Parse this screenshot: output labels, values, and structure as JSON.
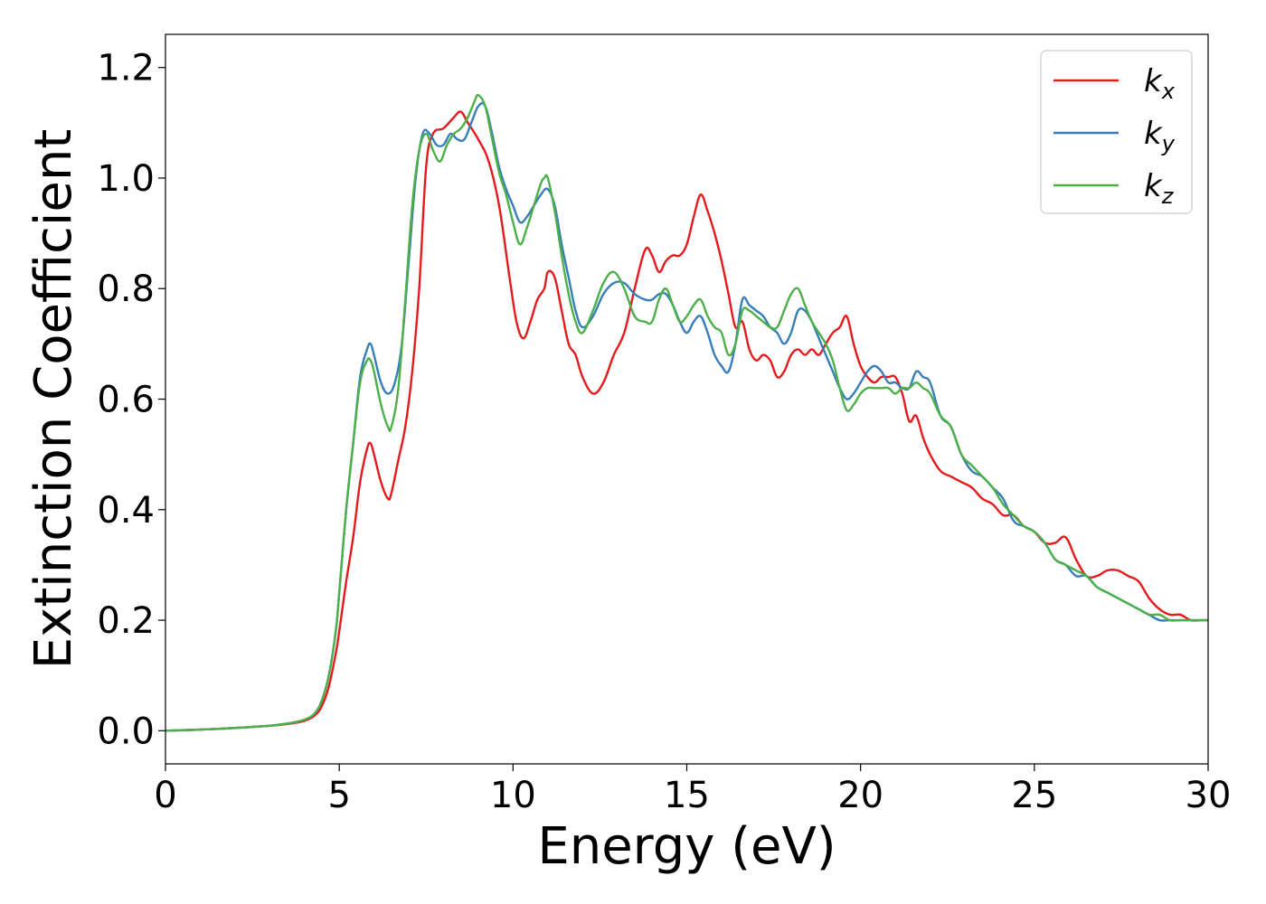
{
  "chart_data": {
    "type": "line",
    "xlabel": "Energy (eV)",
    "ylabel": "Extinction Coefficient",
    "xlim": [
      0,
      30
    ],
    "ylim": [
      -0.06,
      1.26
    ],
    "xticks": [
      0,
      5,
      10,
      15,
      20,
      25,
      30
    ],
    "xtick_labels": [
      "0",
      "5",
      "10",
      "15",
      "20",
      "25",
      "30"
    ],
    "yticks": [
      0.0,
      0.2,
      0.4,
      0.6,
      0.8,
      1.0,
      1.2
    ],
    "ytick_labels": [
      "0.0",
      "0.2",
      "0.4",
      "0.6",
      "0.8",
      "1.0",
      "1.2"
    ],
    "grid": false,
    "legend_position": "top-right",
    "series": [
      {
        "name": "k",
        "name_sub": "x",
        "color": "#e41a1c",
        "x": [
          0,
          1,
          2,
          3,
          3.5,
          4,
          4.3,
          4.5,
          4.7,
          4.9,
          5.0,
          5.2,
          5.4,
          5.6,
          5.8,
          5.9,
          6.0,
          6.2,
          6.4,
          6.5,
          6.7,
          6.9,
          7.1,
          7.3,
          7.5,
          7.7,
          8.0,
          8.3,
          8.5,
          8.7,
          9.0,
          9.3,
          9.6,
          9.9,
          10.1,
          10.3,
          10.5,
          10.7,
          10.9,
          11.0,
          11.2,
          11.4,
          11.6,
          11.8,
          12.0,
          12.3,
          12.6,
          12.9,
          13.2,
          13.5,
          13.8,
          14.0,
          14.2,
          14.4,
          14.6,
          14.8,
          15.0,
          15.2,
          15.4,
          15.6,
          15.8,
          16.0,
          16.2,
          16.4,
          16.6,
          16.8,
          17.0,
          17.2,
          17.4,
          17.6,
          17.8,
          18.0,
          18.2,
          18.4,
          18.6,
          18.8,
          19.0,
          19.2,
          19.4,
          19.6,
          19.8,
          20.0,
          20.2,
          20.4,
          20.6,
          20.8,
          21.0,
          21.2,
          21.4,
          21.6,
          21.8,
          22.0,
          22.3,
          22.6,
          22.9,
          23.2,
          23.5,
          23.8,
          24.1,
          24.4,
          24.7,
          25.0,
          25.3,
          25.6,
          25.9,
          26.2,
          26.5,
          26.8,
          27.1,
          27.4,
          27.7,
          28.0,
          28.3,
          28.6,
          28.9,
          29.2,
          29.5,
          29.8,
          30.0
        ],
        "y": [
          0.0,
          0.002,
          0.005,
          0.009,
          0.012,
          0.018,
          0.028,
          0.045,
          0.08,
          0.14,
          0.18,
          0.27,
          0.35,
          0.45,
          0.51,
          0.52,
          0.5,
          0.45,
          0.42,
          0.43,
          0.49,
          0.55,
          0.65,
          0.8,
          1.02,
          1.08,
          1.09,
          1.11,
          1.12,
          1.1,
          1.07,
          1.03,
          0.95,
          0.82,
          0.74,
          0.71,
          0.74,
          0.78,
          0.8,
          0.83,
          0.82,
          0.76,
          0.7,
          0.68,
          0.64,
          0.61,
          0.63,
          0.68,
          0.72,
          0.8,
          0.87,
          0.86,
          0.83,
          0.85,
          0.86,
          0.86,
          0.88,
          0.93,
          0.97,
          0.94,
          0.9,
          0.85,
          0.79,
          0.73,
          0.74,
          0.69,
          0.67,
          0.68,
          0.67,
          0.64,
          0.65,
          0.68,
          0.69,
          0.68,
          0.69,
          0.68,
          0.7,
          0.72,
          0.73,
          0.75,
          0.7,
          0.66,
          0.64,
          0.63,
          0.64,
          0.64,
          0.64,
          0.61,
          0.56,
          0.57,
          0.53,
          0.5,
          0.47,
          0.46,
          0.45,
          0.44,
          0.42,
          0.41,
          0.39,
          0.39,
          0.37,
          0.36,
          0.34,
          0.34,
          0.35,
          0.31,
          0.28,
          0.28,
          0.29,
          0.29,
          0.28,
          0.27,
          0.24,
          0.22,
          0.21,
          0.21,
          0.2,
          0.2,
          0.2
        ],
        "data_name": "series-kx"
      },
      {
        "name": "k",
        "name_sub": "y",
        "color": "#377eb8",
        "x": [
          0,
          1,
          2,
          3,
          3.5,
          4,
          4.3,
          4.5,
          4.7,
          4.9,
          5.0,
          5.2,
          5.4,
          5.6,
          5.8,
          5.9,
          6.0,
          6.2,
          6.4,
          6.6,
          6.8,
          7.0,
          7.2,
          7.4,
          7.6,
          7.8,
          8.0,
          8.2,
          8.4,
          8.6,
          8.8,
          9.0,
          9.2,
          9.4,
          9.6,
          9.8,
          10.0,
          10.2,
          10.4,
          10.6,
          10.8,
          11.0,
          11.2,
          11.4,
          11.6,
          11.8,
          12.0,
          12.3,
          12.6,
          12.9,
          13.2,
          13.5,
          13.8,
          14.0,
          14.2,
          14.4,
          14.6,
          14.8,
          15.0,
          15.2,
          15.4,
          15.6,
          15.8,
          16.0,
          16.2,
          16.4,
          16.6,
          16.8,
          17.0,
          17.2,
          17.4,
          17.6,
          17.8,
          18.0,
          18.2,
          18.4,
          18.6,
          18.8,
          19.0,
          19.2,
          19.4,
          19.6,
          19.8,
          20.0,
          20.2,
          20.4,
          20.6,
          20.8,
          21.0,
          21.2,
          21.4,
          21.6,
          21.8,
          22.0,
          22.3,
          22.6,
          22.9,
          23.2,
          23.5,
          23.8,
          24.1,
          24.4,
          24.7,
          25.0,
          25.3,
          25.6,
          25.9,
          26.2,
          26.5,
          26.8,
          27.1,
          27.4,
          27.7,
          28.0,
          28.3,
          28.6,
          28.9,
          29.2,
          29.5,
          29.8,
          30.0
        ],
        "y": [
          0.0,
          0.002,
          0.005,
          0.009,
          0.013,
          0.02,
          0.032,
          0.055,
          0.1,
          0.18,
          0.25,
          0.4,
          0.52,
          0.64,
          0.69,
          0.7,
          0.68,
          0.63,
          0.61,
          0.63,
          0.7,
          0.85,
          1.0,
          1.08,
          1.08,
          1.06,
          1.06,
          1.08,
          1.07,
          1.07,
          1.1,
          1.13,
          1.13,
          1.08,
          1.02,
          0.98,
          0.95,
          0.92,
          0.93,
          0.95,
          0.97,
          0.98,
          0.95,
          0.88,
          0.82,
          0.76,
          0.73,
          0.75,
          0.79,
          0.81,
          0.81,
          0.79,
          0.78,
          0.78,
          0.79,
          0.79,
          0.77,
          0.74,
          0.72,
          0.74,
          0.75,
          0.72,
          0.68,
          0.66,
          0.65,
          0.7,
          0.78,
          0.77,
          0.76,
          0.75,
          0.73,
          0.72,
          0.7,
          0.72,
          0.76,
          0.76,
          0.74,
          0.71,
          0.68,
          0.65,
          0.62,
          0.6,
          0.61,
          0.63,
          0.65,
          0.66,
          0.65,
          0.63,
          0.63,
          0.62,
          0.62,
          0.65,
          0.64,
          0.63,
          0.57,
          0.55,
          0.5,
          0.47,
          0.46,
          0.44,
          0.42,
          0.38,
          0.37,
          0.36,
          0.34,
          0.31,
          0.3,
          0.28,
          0.28,
          0.26,
          0.25,
          0.24,
          0.23,
          0.22,
          0.21,
          0.2,
          0.2,
          0.2,
          0.2,
          0.2,
          0.2
        ],
        "data_name": "series-ky"
      },
      {
        "name": "k",
        "name_sub": "z",
        "color": "#4daf4a",
        "x": [
          0,
          1,
          2,
          3,
          3.5,
          4,
          4.3,
          4.5,
          4.7,
          4.9,
          5.0,
          5.2,
          5.4,
          5.6,
          5.8,
          5.9,
          6.0,
          6.2,
          6.4,
          6.5,
          6.7,
          6.9,
          7.1,
          7.3,
          7.5,
          7.7,
          7.9,
          8.1,
          8.3,
          8.5,
          8.7,
          8.9,
          9.0,
          9.2,
          9.4,
          9.6,
          9.8,
          10.0,
          10.2,
          10.4,
          10.6,
          10.8,
          10.9,
          11.0,
          11.2,
          11.4,
          11.6,
          11.8,
          12.0,
          12.3,
          12.6,
          12.9,
          13.2,
          13.5,
          13.8,
          14.0,
          14.2,
          14.4,
          14.6,
          14.8,
          15.0,
          15.2,
          15.4,
          15.6,
          15.8,
          16.0,
          16.2,
          16.4,
          16.6,
          16.8,
          17.0,
          17.2,
          17.4,
          17.6,
          17.8,
          18.0,
          18.2,
          18.4,
          18.6,
          18.8,
          19.0,
          19.2,
          19.4,
          19.6,
          19.8,
          20.0,
          20.2,
          20.4,
          20.6,
          20.8,
          21.0,
          21.2,
          21.4,
          21.6,
          21.8,
          22.0,
          22.3,
          22.6,
          22.9,
          23.2,
          23.5,
          23.8,
          24.1,
          24.4,
          24.7,
          25.0,
          25.3,
          25.6,
          25.9,
          26.2,
          26.5,
          26.8,
          27.1,
          27.4,
          27.7,
          28.0,
          28.3,
          28.6,
          28.9,
          29.2,
          29.5,
          29.8,
          30.0
        ],
        "y": [
          0.0,
          0.002,
          0.005,
          0.009,
          0.013,
          0.02,
          0.032,
          0.055,
          0.1,
          0.18,
          0.25,
          0.4,
          0.52,
          0.63,
          0.67,
          0.67,
          0.65,
          0.59,
          0.55,
          0.55,
          0.62,
          0.78,
          0.95,
          1.05,
          1.08,
          1.05,
          1.03,
          1.06,
          1.08,
          1.09,
          1.11,
          1.14,
          1.15,
          1.13,
          1.07,
          1.01,
          0.97,
          0.92,
          0.88,
          0.91,
          0.95,
          0.99,
          1.0,
          1.0,
          0.94,
          0.86,
          0.79,
          0.74,
          0.72,
          0.76,
          0.81,
          0.83,
          0.8,
          0.75,
          0.74,
          0.74,
          0.78,
          0.8,
          0.77,
          0.74,
          0.75,
          0.77,
          0.78,
          0.75,
          0.73,
          0.72,
          0.68,
          0.7,
          0.76,
          0.76,
          0.75,
          0.74,
          0.73,
          0.73,
          0.76,
          0.79,
          0.8,
          0.77,
          0.74,
          0.72,
          0.7,
          0.67,
          0.62,
          0.58,
          0.59,
          0.61,
          0.62,
          0.62,
          0.62,
          0.62,
          0.61,
          0.62,
          0.62,
          0.63,
          0.62,
          0.61,
          0.57,
          0.55,
          0.5,
          0.48,
          0.46,
          0.44,
          0.41,
          0.39,
          0.37,
          0.36,
          0.34,
          0.31,
          0.3,
          0.29,
          0.28,
          0.26,
          0.25,
          0.24,
          0.23,
          0.22,
          0.21,
          0.21,
          0.2,
          0.2,
          0.2,
          0.2,
          0.2
        ],
        "data_name": "series-kz"
      }
    ]
  }
}
